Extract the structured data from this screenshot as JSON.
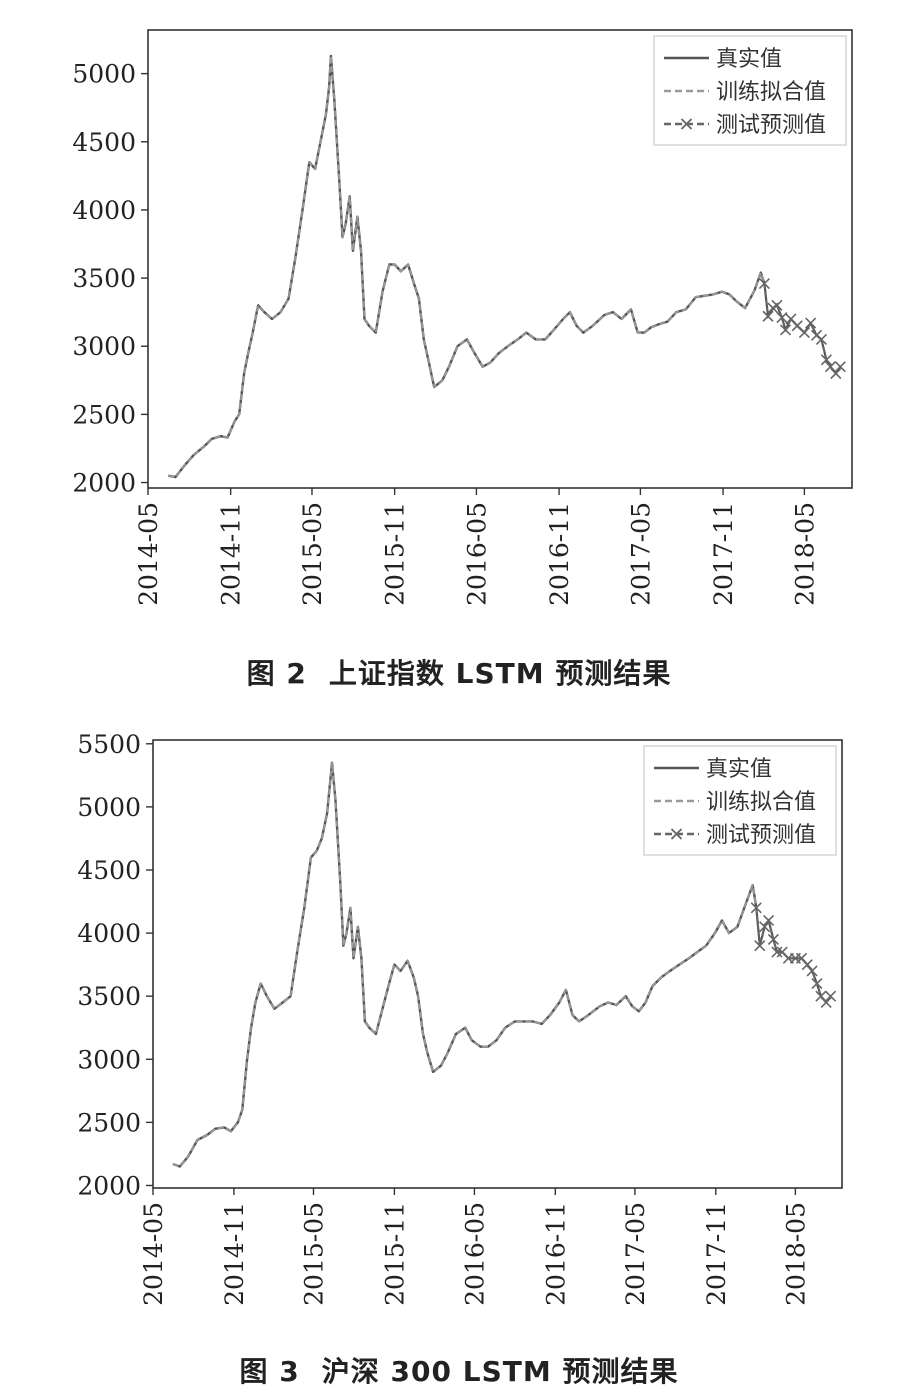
{
  "chart_data": [
    {
      "type": "line",
      "caption_label": "图 2",
      "caption_title": "上证指数 LSTM 预测结果",
      "xlim": [
        "2014-05-01",
        "2018-08-15"
      ],
      "ylim": [
        1960,
        5320
      ],
      "yticks": [
        2000,
        2500,
        3000,
        3500,
        4000,
        4500,
        5000
      ],
      "xticks": [
        "2014-05",
        "2014-11",
        "2015-05",
        "2015-11",
        "2016-05",
        "2016-11",
        "2017-05",
        "2017-11",
        "2018-05"
      ],
      "test_start": "2018-02-01",
      "legend_placement": "top-right",
      "grid": false,
      "series": [
        {
          "name": "真实值",
          "style": "solid",
          "color": "#555555"
        },
        {
          "name": "训练拟合值",
          "style": "dashed",
          "color": "#9a9a9a"
        },
        {
          "name": "测试预测值",
          "style": "dash-x",
          "color": "#666666"
        }
      ],
      "x": [
        "2014-06-15",
        "2014-07-01",
        "2014-07-20",
        "2014-08-10",
        "2014-09-01",
        "2014-09-20",
        "2014-10-10",
        "2014-10-25",
        "2014-11-10",
        "2014-11-20",
        "2014-12-01",
        "2014-12-10",
        "2014-12-20",
        "2015-01-01",
        "2015-01-15",
        "2015-02-01",
        "2015-02-20",
        "2015-03-10",
        "2015-03-25",
        "2015-04-10",
        "2015-04-25",
        "2015-05-08",
        "2015-05-20",
        "2015-06-01",
        "2015-06-08",
        "2015-06-12",
        "2015-06-20",
        "2015-07-01",
        "2015-07-08",
        "2015-07-15",
        "2015-07-24",
        "2015-07-31",
        "2015-08-10",
        "2015-08-18",
        "2015-08-26",
        "2015-09-05",
        "2015-09-20",
        "2015-10-05",
        "2015-10-20",
        "2015-11-01",
        "2015-11-15",
        "2015-12-01",
        "2015-12-15",
        "2015-12-25",
        "2016-01-05",
        "2016-01-15",
        "2016-01-28",
        "2016-02-15",
        "2016-03-01",
        "2016-03-20",
        "2016-04-10",
        "2016-04-25",
        "2016-05-15",
        "2016-06-01",
        "2016-06-20",
        "2016-07-10",
        "2016-08-01",
        "2016-08-20",
        "2016-09-10",
        "2016-10-01",
        "2016-10-20",
        "2016-11-10",
        "2016-11-25",
        "2016-12-10",
        "2016-12-25",
        "2017-01-15",
        "2017-02-10",
        "2017-03-01",
        "2017-03-20",
        "2017-04-10",
        "2017-04-25",
        "2017-05-10",
        "2017-05-25",
        "2017-06-10",
        "2017-06-30",
        "2017-07-20",
        "2017-08-10",
        "2017-09-01",
        "2017-09-20",
        "2017-10-10",
        "2017-10-30",
        "2017-11-15",
        "2017-12-01",
        "2017-12-20",
        "2018-01-10",
        "2018-01-24",
        "2018-02-01",
        "2018-02-09",
        "2018-02-20",
        "2018-03-01",
        "2018-03-12",
        "2018-03-20",
        "2018-04-01",
        "2018-04-15",
        "2018-05-01",
        "2018-05-15",
        "2018-05-28",
        "2018-06-08",
        "2018-06-19",
        "2018-06-28",
        "2018-07-10",
        "2018-07-20"
      ],
      "y": [
        2050,
        2040,
        2120,
        2200,
        2260,
        2320,
        2340,
        2330,
        2450,
        2500,
        2800,
        2950,
        3100,
        3300,
        3250,
        3200,
        3250,
        3350,
        3650,
        4000,
        4350,
        4300,
        4500,
        4700,
        4900,
        5130,
        4800,
        4200,
        3800,
        3900,
        4100,
        3700,
        3950,
        3700,
        3200,
        3150,
        3100,
        3400,
        3600,
        3600,
        3550,
        3600,
        3450,
        3350,
        3050,
        2900,
        2700,
        2750,
        2850,
        3000,
        3050,
        2960,
        2850,
        2880,
        2950,
        3000,
        3050,
        3100,
        3050,
        3050,
        3120,
        3200,
        3250,
        3150,
        3100,
        3150,
        3230,
        3250,
        3200,
        3270,
        3100,
        3100,
        3140,
        3160,
        3180,
        3250,
        3270,
        3360,
        3370,
        3380,
        3400,
        3380,
        3330,
        3280,
        3410,
        3540,
        3460,
        3220,
        3280,
        3300,
        3210,
        3120,
        3200,
        3150,
        3100,
        3170,
        3080,
        3050,
        2900,
        2850,
        2800,
        2850
      ]
    },
    {
      "type": "line",
      "caption_label": "图 3",
      "caption_title": "沪深 300 LSTM 预测结果",
      "xlim": [
        "2014-05-01",
        "2018-08-15"
      ],
      "ylim": [
        1980,
        5530
      ],
      "yticks": [
        2000,
        2500,
        3000,
        3500,
        4000,
        4500,
        5000,
        5500
      ],
      "xticks": [
        "2014-05",
        "2014-11",
        "2015-05",
        "2015-11",
        "2016-05",
        "2016-11",
        "2017-05",
        "2017-11",
        "2018-05"
      ],
      "test_start": "2018-02-01",
      "legend_placement": "top-right",
      "grid": false,
      "series": [
        {
          "name": "真实值",
          "style": "solid",
          "color": "#555555"
        },
        {
          "name": "训练拟合值",
          "style": "dashed",
          "color": "#9a9a9a"
        },
        {
          "name": "测试预测值",
          "style": "dash-x",
          "color": "#666666"
        }
      ],
      "x": [
        "2014-06-15",
        "2014-07-01",
        "2014-07-20",
        "2014-08-10",
        "2014-09-01",
        "2014-09-20",
        "2014-10-10",
        "2014-10-25",
        "2014-11-10",
        "2014-11-20",
        "2014-12-01",
        "2014-12-10",
        "2014-12-20",
        "2015-01-01",
        "2015-01-15",
        "2015-02-01",
        "2015-02-20",
        "2015-03-10",
        "2015-03-25",
        "2015-04-10",
        "2015-04-25",
        "2015-05-08",
        "2015-05-20",
        "2015-06-01",
        "2015-06-08",
        "2015-06-12",
        "2015-06-20",
        "2015-07-01",
        "2015-07-08",
        "2015-07-15",
        "2015-07-24",
        "2015-07-31",
        "2015-08-10",
        "2015-08-18",
        "2015-08-26",
        "2015-09-05",
        "2015-09-20",
        "2015-10-05",
        "2015-10-20",
        "2015-11-01",
        "2015-11-15",
        "2015-12-01",
        "2015-12-15",
        "2015-12-25",
        "2016-01-05",
        "2016-01-15",
        "2016-01-28",
        "2016-02-15",
        "2016-03-01",
        "2016-03-20",
        "2016-04-10",
        "2016-04-25",
        "2016-05-15",
        "2016-06-01",
        "2016-06-20",
        "2016-07-10",
        "2016-08-01",
        "2016-08-20",
        "2016-09-10",
        "2016-10-01",
        "2016-10-20",
        "2016-11-10",
        "2016-11-25",
        "2016-12-10",
        "2016-12-25",
        "2017-01-15",
        "2017-02-10",
        "2017-03-01",
        "2017-03-20",
        "2017-04-10",
        "2017-04-25",
        "2017-05-10",
        "2017-05-25",
        "2017-06-10",
        "2017-06-30",
        "2017-07-20",
        "2017-08-10",
        "2017-09-01",
        "2017-09-20",
        "2017-10-10",
        "2017-10-30",
        "2017-11-15",
        "2017-12-01",
        "2017-12-20",
        "2018-01-10",
        "2018-01-24",
        "2018-02-01",
        "2018-02-09",
        "2018-02-20",
        "2018-03-01",
        "2018-03-12",
        "2018-03-20",
        "2018-04-01",
        "2018-04-15",
        "2018-05-01",
        "2018-05-15",
        "2018-05-28",
        "2018-06-08",
        "2018-06-19",
        "2018-06-28",
        "2018-07-10",
        "2018-07-20"
      ],
      "y": [
        2170,
        2150,
        2230,
        2360,
        2400,
        2450,
        2460,
        2430,
        2500,
        2600,
        3000,
        3250,
        3450,
        3600,
        3500,
        3400,
        3450,
        3500,
        3850,
        4200,
        4600,
        4650,
        4750,
        4950,
        5200,
        5350,
        5050,
        4400,
        3900,
        4000,
        4200,
        3800,
        4050,
        3800,
        3300,
        3250,
        3200,
        3400,
        3600,
        3750,
        3700,
        3780,
        3650,
        3500,
        3200,
        3050,
        2900,
        2950,
        3050,
        3200,
        3250,
        3150,
        3100,
        3100,
        3150,
        3250,
        3300,
        3300,
        3300,
        3280,
        3350,
        3450,
        3550,
        3350,
        3300,
        3350,
        3420,
        3450,
        3430,
        3500,
        3420,
        3380,
        3450,
        3580,
        3650,
        3700,
        3750,
        3800,
        3850,
        3900,
        4000,
        4100,
        4000,
        4050,
        4250,
        4380,
        4200,
        3900,
        4050,
        4100,
        3950,
        3850,
        3850,
        3800,
        3800,
        3800,
        3750,
        3700,
        3600,
        3500,
        3450,
        3500
      ]
    }
  ]
}
